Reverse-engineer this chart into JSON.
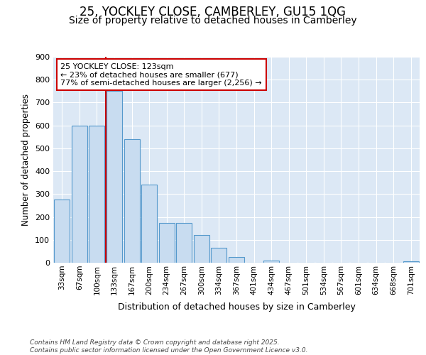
{
  "title1": "25, YOCKLEY CLOSE, CAMBERLEY, GU15 1QG",
  "title2": "Size of property relative to detached houses in Camberley",
  "xlabel": "Distribution of detached houses by size in Camberley",
  "ylabel": "Number of detached properties",
  "categories": [
    "33sqm",
    "67sqm",
    "100sqm",
    "133sqm",
    "167sqm",
    "200sqm",
    "234sqm",
    "267sqm",
    "300sqm",
    "334sqm",
    "367sqm",
    "401sqm",
    "434sqm",
    "467sqm",
    "501sqm",
    "534sqm",
    "567sqm",
    "601sqm",
    "634sqm",
    "668sqm",
    "701sqm"
  ],
  "values": [
    275,
    600,
    600,
    750,
    540,
    340,
    175,
    175,
    120,
    65,
    25,
    0,
    10,
    0,
    0,
    0,
    0,
    0,
    0,
    0,
    5
  ],
  "bar_color": "#c8dcf0",
  "bar_edge_color": "#5599cc",
  "vline_color": "#cc0000",
  "annotation_text": "25 YOCKLEY CLOSE: 123sqm\n← 23% of detached houses are smaller (677)\n77% of semi-detached houses are larger (2,256) →",
  "annotation_box_color": "#ffffff",
  "annotation_box_edge": "#cc0000",
  "ylim": [
    0,
    900
  ],
  "yticks": [
    0,
    100,
    200,
    300,
    400,
    500,
    600,
    700,
    800,
    900
  ],
  "footer_text": "Contains HM Land Registry data © Crown copyright and database right 2025.\nContains public sector information licensed under the Open Government Licence v3.0.",
  "fig_bg_color": "#ffffff",
  "plot_bg_color": "#dce8f5",
  "title1_fontsize": 12,
  "title2_fontsize": 10,
  "grid_color": "#ffffff"
}
